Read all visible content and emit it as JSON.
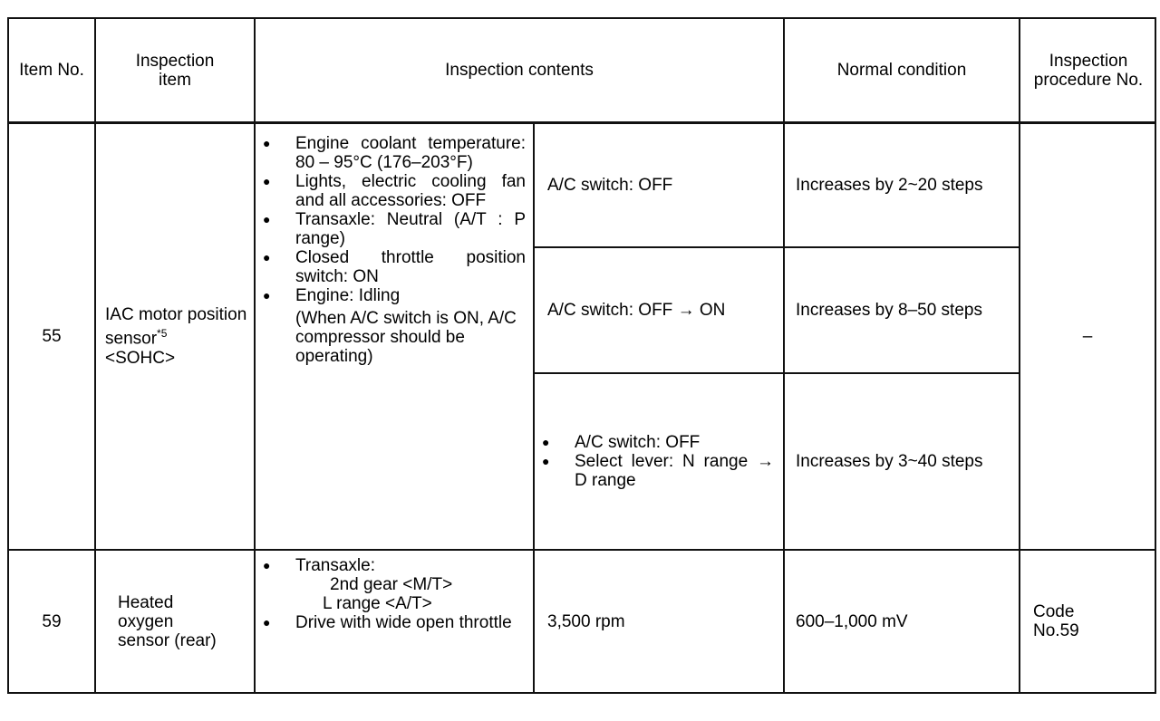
{
  "headers": {
    "item_no": "Item No.",
    "inspection_item": "Inspection item",
    "inspection_contents": "Inspection contents",
    "normal_condition": "Normal condition",
    "procedure_no": "Inspection procedure No."
  },
  "rows": [
    {
      "item_no": "55",
      "item": "IAC motor position sensor",
      "item_sup": "*5",
      "item_variant": "<SOHC>",
      "conditions": [
        "Engine coolant temperature: 80 – 95°C (176–203°F)",
        "Lights, electric cooling fan and all accessories: OFF",
        "Transaxle: Neutral (A/T : P range)",
        "Closed throttle position switch: ON",
        "Engine: Idling"
      ],
      "condition_note": "(When A/C switch is ON, A/C compressor should be operating)",
      "sub": [
        {
          "content": "A/C switch: OFF",
          "normal": "Increases by 2~20 steps"
        },
        {
          "content": "A/C switch: OFF → ON",
          "normal": "Increases by 8–50 steps"
        },
        {
          "content_bullets": [
            "A/C switch: OFF",
            "Select lever: N range → D range"
          ],
          "normal": "Increases by 3~40 steps"
        }
      ],
      "procedure": "–"
    },
    {
      "item_no": "59",
      "item": "Heated oxygen sensor (rear)",
      "conditions": [
        "Transaxle:",
        "Drive with wide open throttle"
      ],
      "gear_lines": [
        "2nd gear <M/T>",
        "L range <A/T>"
      ],
      "content": "3,500 rpm",
      "normal": "600–1,000 mV",
      "procedure": "Code No.59"
    }
  ]
}
